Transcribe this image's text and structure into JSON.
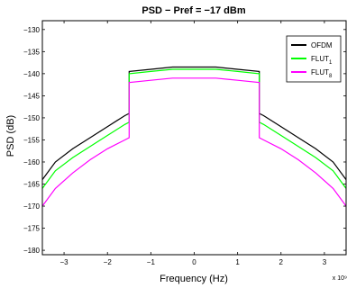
{
  "chart_data": {
    "type": "line",
    "title": "PSD − Pref = −17 dBm",
    "xlabel": "Frequency (Hz)",
    "ylabel": "PSD (dB)",
    "x_exponent_label": "x 10⁹",
    "xlim": [
      -3.5,
      3.5
    ],
    "ylim": [
      -181,
      -128
    ],
    "x_ticks": [
      -3,
      -2,
      -1,
      0,
      1,
      2,
      3
    ],
    "x_tick_labels": [
      "−3",
      "−2",
      "−1",
      "0",
      "1",
      "2",
      "3"
    ],
    "y_ticks": [
      -180,
      -175,
      -170,
      -165,
      -160,
      -155,
      -150,
      -145,
      -140,
      -135,
      -130
    ],
    "y_tick_labels": [
      "−180",
      "−175",
      "−170",
      "−165",
      "−160",
      "−155",
      "−150",
      "−145",
      "−140",
      "−135",
      "−130"
    ],
    "grid": false,
    "legend_position": "top-right",
    "series": [
      {
        "name": "OFDM",
        "color": "#000000",
        "x": [
          -3.5,
          -3.2,
          -2.8,
          -2.4,
          -2.0,
          -1.6,
          -1.5,
          -1.5,
          -1.0,
          -0.5,
          0.0,
          0.5,
          1.0,
          1.5,
          1.5,
          1.6,
          2.0,
          2.4,
          2.8,
          3.2,
          3.5
        ],
        "y": [
          -164,
          -160,
          -157,
          -154.5,
          -152,
          -149.5,
          -149,
          -139.5,
          -139,
          -138.5,
          -138.5,
          -138.5,
          -139,
          -139.5,
          -149,
          -149.5,
          -152,
          -154.5,
          -157,
          -160,
          -164
        ]
      },
      {
        "name": "FLUT1",
        "color": "#00ff00",
        "x": [
          -3.5,
          -3.2,
          -2.8,
          -2.4,
          -2.0,
          -1.6,
          -1.5,
          -1.5,
          -1.0,
          -0.5,
          0.0,
          0.5,
          1.0,
          1.5,
          1.5,
          1.6,
          2.0,
          2.4,
          2.8,
          3.2,
          3.5
        ],
        "y": [
          -166,
          -162,
          -159,
          -156.5,
          -154,
          -151.5,
          -151,
          -140,
          -139.5,
          -139,
          -139,
          -139,
          -139.5,
          -140,
          -151,
          -151.5,
          -154,
          -156.5,
          -159,
          -162,
          -166
        ]
      },
      {
        "name": "FLUT8",
        "color": "#ff00ff",
        "x": [
          -3.5,
          -3.2,
          -2.8,
          -2.4,
          -2.0,
          -1.6,
          -1.5,
          -1.5,
          -1.0,
          -0.5,
          0.0,
          0.5,
          1.0,
          1.5,
          1.5,
          1.6,
          2.0,
          2.4,
          2.8,
          3.2,
          3.5
        ],
        "y": [
          -170,
          -166,
          -162.5,
          -159.5,
          -157,
          -155,
          -154.5,
          -142,
          -141.5,
          -141,
          -141,
          -141,
          -141.5,
          -142,
          -154.5,
          -155,
          -157,
          -159.5,
          -162.5,
          -166,
          -170
        ]
      }
    ],
    "legend_items": [
      {
        "base": "OFDM",
        "sub": ""
      },
      {
        "base": "FLUT",
        "sub": "1"
      },
      {
        "base": "FLUT",
        "sub": "8"
      }
    ]
  }
}
